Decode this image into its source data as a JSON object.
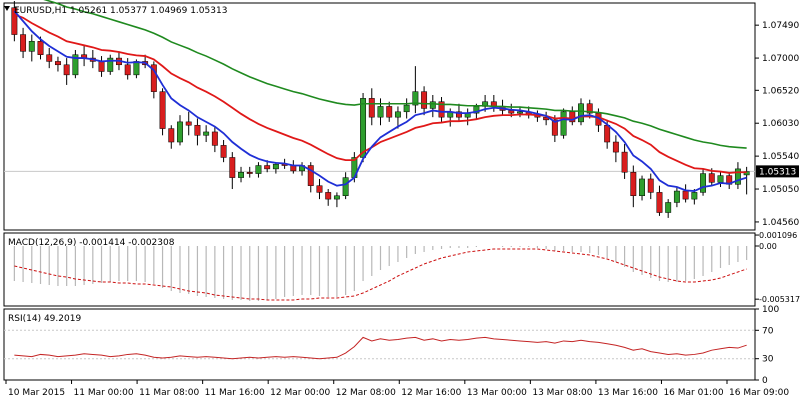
{
  "window": {
    "header": "EURUSD,H1  1.05261 1.05377 1.04969 1.05313"
  },
  "colors": {
    "bull": "#2e9e2e",
    "bear": "#d81e1e",
    "wick": "#000000",
    "ma_fast": "#1f2fd6",
    "ma_mid": "#e01818",
    "ma_slow": "#1f8a1f",
    "grid": "#c8c8c8",
    "macd_signal": "#cc1010",
    "rsi_line": "#c42424",
    "current_price_bg": "#000000",
    "current_price_fg": "#ffffff"
  },
  "chart_data": [
    {
      "type": "candlestick",
      "title": "EURUSD,H1",
      "quote": {
        "open": 1.05261,
        "high": 1.05377,
        "low": 1.04969,
        "close": 1.05313
      },
      "ylim": [
        1.0444,
        1.0782
      ],
      "y_ticks": [
        "1.07490",
        "1.07000",
        "1.06520",
        "1.06030",
        "1.05540",
        "1.05050",
        "1.04560"
      ],
      "current_price": "1.05313",
      "x_ticks": [
        "10 Mar 2015",
        "11 Mar 00:00",
        "11 Mar 08:00",
        "11 Mar 16:00",
        "12 Mar 00:00",
        "12 Mar 08:00",
        "12 Mar 16:00",
        "13 Mar 00:00",
        "13 Mar 08:00",
        "13 Mar 16:00",
        "16 Mar 01:00",
        "16 Mar 09:00"
      ],
      "candles": [
        [
          1.0775,
          1.0785,
          1.0725,
          1.0735
        ],
        [
          1.0735,
          1.0745,
          1.07,
          1.071
        ],
        [
          1.071,
          1.0735,
          1.0695,
          1.0725
        ],
        [
          1.0725,
          1.0732,
          1.0698,
          1.0705
        ],
        [
          1.0705,
          1.0715,
          1.0685,
          1.0695
        ],
        [
          1.0695,
          1.0702,
          1.068,
          1.069
        ],
        [
          1.069,
          1.07,
          1.066,
          1.0675
        ],
        [
          1.0675,
          1.0712,
          1.067,
          1.0705
        ],
        [
          1.0705,
          1.0718,
          1.0688,
          1.07
        ],
        [
          1.07,
          1.0712,
          1.0685,
          1.0695
        ],
        [
          1.0695,
          1.0703,
          1.0672,
          1.068
        ],
        [
          1.068,
          1.0705,
          1.0675,
          1.07
        ],
        [
          1.07,
          1.071,
          1.0682,
          1.069
        ],
        [
          1.069,
          1.07,
          1.0668,
          1.0675
        ],
        [
          1.0675,
          1.0698,
          1.067,
          1.0695
        ],
        [
          1.0695,
          1.0705,
          1.0685,
          1.069
        ],
        [
          1.069,
          1.0695,
          1.064,
          1.065
        ],
        [
          1.065,
          1.0655,
          1.0585,
          1.0595
        ],
        [
          1.0595,
          1.06,
          1.0565,
          1.0575
        ],
        [
          1.0575,
          1.0615,
          1.057,
          1.0605
        ],
        [
          1.0605,
          1.062,
          1.0585,
          1.06
        ],
        [
          1.06,
          1.061,
          1.057,
          1.0585
        ],
        [
          1.0585,
          1.06,
          1.0575,
          1.059
        ],
        [
          1.059,
          1.0598,
          1.056,
          1.057
        ],
        [
          1.057,
          1.0578,
          1.0545,
          1.0552
        ],
        [
          1.0552,
          1.056,
          1.0505,
          1.0522
        ],
        [
          1.0522,
          1.0538,
          1.0515,
          1.053
        ],
        [
          1.053,
          1.0538,
          1.0522,
          1.0528
        ],
        [
          1.0528,
          1.0545,
          1.0522,
          1.054
        ],
        [
          1.054,
          1.0548,
          1.053,
          1.0535
        ],
        [
          1.0535,
          1.0545,
          1.0528,
          1.0542
        ],
        [
          1.0542,
          1.055,
          1.0535,
          1.054
        ],
        [
          1.054,
          1.0548,
          1.0528,
          1.0532
        ],
        [
          1.0532,
          1.0545,
          1.0525,
          1.054
        ],
        [
          1.054,
          1.0545,
          1.05,
          1.051
        ],
        [
          1.051,
          1.052,
          1.049,
          1.05
        ],
        [
          1.05,
          1.0505,
          1.048,
          1.049
        ],
        [
          1.049,
          1.05,
          1.0478,
          1.0495
        ],
        [
          1.0495,
          1.053,
          1.049,
          1.0522
        ],
        [
          1.0522,
          1.056,
          1.0515,
          1.0552
        ],
        [
          1.0552,
          1.0648,
          1.0545,
          1.064
        ],
        [
          1.064,
          1.0655,
          1.06,
          1.0612
        ],
        [
          1.0612,
          1.064,
          1.06,
          1.0628
        ],
        [
          1.0628,
          1.0635,
          1.0605,
          1.0612
        ],
        [
          1.0612,
          1.0628,
          1.0595,
          1.062
        ],
        [
          1.062,
          1.064,
          1.061,
          1.063
        ],
        [
          1.063,
          1.0688,
          1.0618,
          1.065
        ],
        [
          1.065,
          1.0658,
          1.0615,
          1.0625
        ],
        [
          1.0625,
          1.0645,
          1.0612,
          1.0635
        ],
        [
          1.0635,
          1.0642,
          1.0605,
          1.0612
        ],
        [
          1.0612,
          1.0625,
          1.0598,
          1.062
        ],
        [
          1.062,
          1.0632,
          1.0605,
          1.0612
        ],
        [
          1.0612,
          1.0625,
          1.06,
          1.0618
        ],
        [
          1.0618,
          1.0632,
          1.061,
          1.0628
        ],
        [
          1.0628,
          1.0645,
          1.062,
          1.0635
        ],
        [
          1.0635,
          1.0645,
          1.062,
          1.0628
        ],
        [
          1.0628,
          1.0638,
          1.0615,
          1.0622
        ],
        [
          1.0622,
          1.0632,
          1.0612,
          1.0618
        ],
        [
          1.0618,
          1.0628,
          1.0612,
          1.062
        ],
        [
          1.062,
          1.0628,
          1.061,
          1.0615
        ],
        [
          1.0615,
          1.0622,
          1.0605,
          1.0612
        ],
        [
          1.0612,
          1.062,
          1.06,
          1.0608
        ],
        [
          1.0608,
          1.0615,
          1.0575,
          1.0585
        ],
        [
          1.0585,
          1.0625,
          1.058,
          1.062
        ],
        [
          1.062,
          1.0628,
          1.06,
          1.0605
        ],
        [
          1.0605,
          1.064,
          1.06,
          1.0632
        ],
        [
          1.0632,
          1.0638,
          1.061,
          1.0618
        ],
        [
          1.0618,
          1.0625,
          1.059,
          1.06
        ],
        [
          1.06,
          1.0608,
          1.0565,
          1.0575
        ],
        [
          1.0575,
          1.0585,
          1.0545,
          1.056
        ],
        [
          1.056,
          1.0572,
          1.052,
          1.053
        ],
        [
          1.053,
          1.054,
          1.0478,
          1.0495
        ],
        [
          1.0495,
          1.0525,
          1.0488,
          1.052
        ],
        [
          1.052,
          1.0528,
          1.049,
          1.05
        ],
        [
          1.05,
          1.051,
          1.0465,
          1.047
        ],
        [
          1.047,
          1.049,
          1.0462,
          1.0485
        ],
        [
          1.0485,
          1.0508,
          1.0478,
          1.0502
        ],
        [
          1.0502,
          1.0512,
          1.0485,
          1.049
        ],
        [
          1.049,
          1.0505,
          1.0482,
          1.05
        ],
        [
          1.05,
          1.0535,
          1.0495,
          1.0528
        ],
        [
          1.0528,
          1.0536,
          1.051,
          1.0515
        ],
        [
          1.0515,
          1.053,
          1.0508,
          1.0525
        ],
        [
          1.0525,
          1.053,
          1.0505,
          1.0512
        ],
        [
          1.0512,
          1.0545,
          1.0505,
          1.0535
        ],
        [
          1.0526,
          1.0538,
          1.0497,
          1.0531
        ]
      ],
      "ma_fast": [
        1.077,
        1.0755,
        1.074,
        1.0728,
        1.0718,
        1.071,
        1.0702,
        1.07,
        1.07,
        1.0698,
        1.0695,
        1.0696,
        1.0696,
        1.0693,
        1.0694,
        1.0693,
        1.0682,
        1.066,
        1.064,
        1.063,
        1.0622,
        1.0612,
        1.0605,
        1.0598,
        1.0588,
        1.0575,
        1.0565,
        1.0556,
        1.055,
        1.0546,
        1.0544,
        1.0543,
        1.054,
        1.054,
        1.0533,
        1.0525,
        1.0516,
        1.051,
        1.0512,
        1.0522,
        1.055,
        1.0568,
        1.0582,
        1.059,
        1.0598,
        1.0605,
        1.0615,
        1.0618,
        1.0622,
        1.062,
        1.062,
        1.0618,
        1.0618,
        1.062,
        1.0624,
        1.0626,
        1.0625,
        1.0623,
        1.0622,
        1.062,
        1.0617,
        1.0614,
        1.0605,
        1.0609,
        1.0608,
        1.0614,
        1.0615,
        1.0611,
        1.0601,
        1.059,
        1.0575,
        1.0555,
        1.0546,
        1.0535,
        1.0518,
        1.051,
        1.0508,
        1.0503,
        1.0502,
        1.0508,
        1.051,
        1.0514,
        1.0513,
        1.0518,
        1.0522
      ],
      "ma_mid": [
        1.0765,
        1.076,
        1.0752,
        1.0745,
        1.0738,
        1.0732,
        1.0725,
        1.0722,
        1.0719,
        1.0716,
        1.0712,
        1.0711,
        1.0709,
        1.0706,
        1.0704,
        1.0703,
        1.0698,
        1.0688,
        1.0677,
        1.067,
        1.0664,
        1.0656,
        1.065,
        1.0643,
        1.0635,
        1.0626,
        1.0617,
        1.0609,
        1.0602,
        1.0596,
        1.0591,
        1.0586,
        1.0581,
        1.0577,
        1.0571,
        1.0564,
        1.0557,
        1.0551,
        1.0548,
        1.0548,
        1.056,
        1.0567,
        1.0575,
        1.058,
        1.0585,
        1.059,
        1.0596,
        1.0599,
        1.0603,
        1.0604,
        1.0606,
        1.0606,
        1.0607,
        1.0609,
        1.0612,
        1.0614,
        1.0615,
        1.0615,
        1.0616,
        1.0616,
        1.0615,
        1.0614,
        1.061,
        1.0611,
        1.061,
        1.0613,
        1.0613,
        1.0612,
        1.0607,
        1.0602,
        1.0595,
        1.0584,
        1.0578,
        1.0571,
        1.056,
        1.0553,
        1.0547,
        1.0541,
        1.0536,
        1.0535,
        1.0532,
        1.0531,
        1.0529,
        1.053,
        1.053
      ],
      "ma_slow": [
        1.08,
        1.0797,
        1.0793,
        1.0789,
        1.0785,
        1.0781,
        1.0776,
        1.0773,
        1.0769,
        1.0766,
        1.0762,
        1.0758,
        1.0754,
        1.075,
        1.0746,
        1.0742,
        1.0737,
        1.0731,
        1.0724,
        1.0719,
        1.0714,
        1.0708,
        1.0703,
        1.0697,
        1.0691,
        1.0684,
        1.0678,
        1.0672,
        1.0667,
        1.0662,
        1.0658,
        1.0654,
        1.065,
        1.0647,
        1.0643,
        1.0639,
        1.0636,
        1.0633,
        1.0631,
        1.063,
        1.0632,
        1.0632,
        1.0632,
        1.0632,
        1.0632,
        1.0632,
        1.0633,
        1.0632,
        1.0632,
        1.0631,
        1.0631,
        1.063,
        1.0629,
        1.0629,
        1.0629,
        1.0628,
        1.0628,
        1.0627,
        1.0627,
        1.0626,
        1.0625,
        1.0624,
        1.0622,
        1.0622,
        1.0621,
        1.0621,
        1.062,
        1.0619,
        1.0617,
        1.0614,
        1.0611,
        1.0606,
        1.0603,
        1.0599,
        1.0594,
        1.059,
        1.0586,
        1.0582,
        1.0578,
        1.0575,
        1.0573,
        1.057,
        1.0568,
        1.0567,
        1.0566
      ]
    },
    {
      "type": "bar",
      "title": "MACD(12,26,9) -0.001414 -0.002308",
      "params": "12,26,9",
      "macd_value": -0.001414,
      "signal_value": -0.002308,
      "ylim": [
        -0.006,
        0.0013
      ],
      "y_ticks": [
        "0.001096",
        "0.00",
        "-0.005317"
      ],
      "macd": [
        -0.0035,
        -0.0036,
        -0.0037,
        -0.0038,
        -0.0039,
        -0.004,
        -0.004,
        -0.004,
        -0.0039,
        -0.0038,
        -0.0037,
        -0.0036,
        -0.0035,
        -0.0035,
        -0.0035,
        -0.0036,
        -0.0038,
        -0.0042,
        -0.0045,
        -0.0047,
        -0.0048,
        -0.005,
        -0.0051,
        -0.0052,
        -0.0053,
        -0.0054,
        -0.0054,
        -0.0055,
        -0.0055,
        -0.0054,
        -0.0053,
        -0.0051,
        -0.005,
        -0.0049,
        -0.0049,
        -0.005,
        -0.0051,
        -0.0051,
        -0.0049,
        -0.0045,
        -0.0035,
        -0.003,
        -0.0024,
        -0.002,
        -0.0016,
        -0.0012,
        -0.0008,
        -0.0006,
        -0.0004,
        -0.0003,
        -0.0002,
        -0.0002,
        -0.0002,
        -0.0001,
        0.0,
        0.0,
        -0.0001,
        -0.0001,
        -0.0001,
        -0.0001,
        -0.0002,
        -0.0003,
        -0.0005,
        -0.0005,
        -0.0006,
        -0.0006,
        -0.0007,
        -0.0009,
        -0.0012,
        -0.0016,
        -0.0021,
        -0.0026,
        -0.0029,
        -0.0032,
        -0.0035,
        -0.0036,
        -0.0036,
        -0.0035,
        -0.0033,
        -0.003,
        -0.0026,
        -0.0022,
        -0.0019,
        -0.0016,
        -0.0014
      ],
      "signal": [
        -0.002,
        -0.0022,
        -0.0024,
        -0.0026,
        -0.0028,
        -0.003,
        -0.0031,
        -0.0033,
        -0.0034,
        -0.0035,
        -0.0036,
        -0.0036,
        -0.0037,
        -0.0037,
        -0.0038,
        -0.0038,
        -0.0039,
        -0.004,
        -0.0041,
        -0.0043,
        -0.0045,
        -0.0046,
        -0.0047,
        -0.0049,
        -0.005,
        -0.0051,
        -0.0052,
        -0.0053,
        -0.0053,
        -0.0054,
        -0.0054,
        -0.0054,
        -0.0054,
        -0.0053,
        -0.0053,
        -0.0052,
        -0.0052,
        -0.0052,
        -0.0051,
        -0.005,
        -0.0047,
        -0.0043,
        -0.0039,
        -0.0035,
        -0.003,
        -0.0026,
        -0.0022,
        -0.0018,
        -0.0015,
        -0.0012,
        -0.001,
        -0.0008,
        -0.0006,
        -0.0005,
        -0.0004,
        -0.0003,
        -0.0003,
        -0.0003,
        -0.0003,
        -0.0003,
        -0.0003,
        -0.0004,
        -0.0005,
        -0.0006,
        -0.0007,
        -0.0008,
        -0.0009,
        -0.0011,
        -0.0013,
        -0.0016,
        -0.0019,
        -0.0022,
        -0.0025,
        -0.0028,
        -0.0031,
        -0.0033,
        -0.0035,
        -0.0036,
        -0.0036,
        -0.0035,
        -0.0034,
        -0.0032,
        -0.0029,
        -0.0026,
        -0.0023
      ]
    },
    {
      "type": "line",
      "title": "RSI(14) 49.2019",
      "period": 14,
      "value": 49.2019,
      "ylim": [
        0,
        100
      ],
      "y_ticks": [
        "100",
        "70",
        "30",
        "0"
      ],
      "levels": [
        70,
        30
      ],
      "values": [
        35,
        34,
        33,
        36,
        35,
        33,
        34,
        35,
        37,
        36,
        35,
        33,
        34,
        36,
        37,
        35,
        32,
        31,
        32,
        34,
        33,
        32,
        33,
        32,
        31,
        30,
        31,
        32,
        31,
        32,
        33,
        32,
        33,
        32,
        31,
        30,
        31,
        32,
        38,
        47,
        60,
        55,
        58,
        56,
        57,
        59,
        60,
        56,
        58,
        55,
        57,
        56,
        57,
        59,
        60,
        58,
        57,
        56,
        55,
        54,
        53,
        54,
        52,
        55,
        54,
        56,
        54,
        53,
        51,
        49,
        46,
        42,
        44,
        40,
        38,
        36,
        37,
        35,
        36,
        38,
        42,
        44,
        46,
        45,
        49
      ]
    }
  ]
}
